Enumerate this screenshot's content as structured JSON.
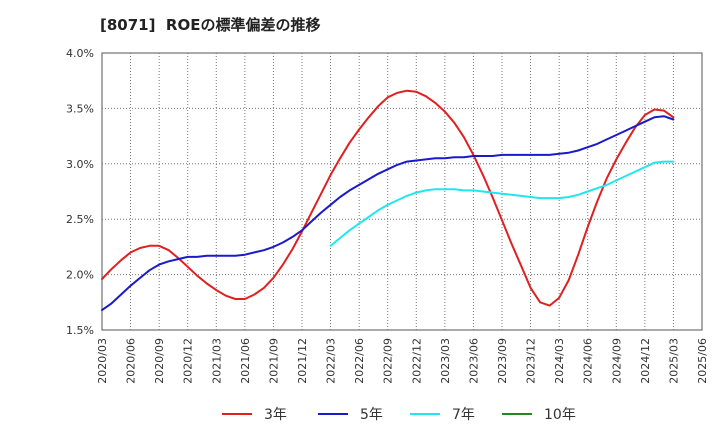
{
  "chart_data": {
    "type": "line",
    "title": "[8071]  ROEの標準偏差の推移",
    "xlabel": "",
    "ylabel": "",
    "ylim": [
      1.5,
      4.0
    ],
    "yticks": [
      "1.5%",
      "2.0%",
      "2.5%",
      "3.0%",
      "3.5%",
      "4.0%"
    ],
    "ytick_values": [
      1.5,
      2.0,
      2.5,
      3.0,
      3.5,
      4.0
    ],
    "xticks": [
      "2020/03",
      "2020/06",
      "2020/09",
      "2020/12",
      "2021/03",
      "2021/06",
      "2021/09",
      "2021/12",
      "2022/03",
      "2022/06",
      "2022/09",
      "2022/12",
      "2023/03",
      "2023/06",
      "2023/09",
      "2023/12",
      "2024/03",
      "2024/06",
      "2024/09",
      "2024/12",
      "2025/03",
      "2025/06"
    ],
    "grid": true,
    "legend_position": "bottom",
    "series": [
      {
        "name": "3年",
        "color": "#e02020",
        "x": [
          0,
          0.333,
          0.667,
          1,
          1.333,
          1.667,
          2,
          2.333,
          2.667,
          3,
          3.333,
          3.667,
          4,
          4.333,
          4.667,
          5,
          5.333,
          5.667,
          6,
          6.333,
          6.667,
          7,
          7.333,
          7.667,
          8,
          8.333,
          8.667,
          9,
          9.333,
          9.667,
          10,
          10.333,
          10.667,
          11,
          11.333,
          11.667,
          12,
          12.333,
          12.667,
          13,
          13.333,
          13.667,
          14,
          14.333,
          14.667,
          15,
          15.333,
          15.667,
          16,
          16.333,
          16.667,
          17,
          17.333,
          17.667,
          18,
          18.333,
          18.667,
          19,
          19.333,
          19.667,
          20
        ],
        "values": [
          1.96,
          2.05,
          2.13,
          2.2,
          2.24,
          2.26,
          2.26,
          2.22,
          2.15,
          2.07,
          1.99,
          1.92,
          1.86,
          1.81,
          1.78,
          1.78,
          1.82,
          1.88,
          1.97,
          2.09,
          2.23,
          2.39,
          2.56,
          2.73,
          2.9,
          3.05,
          3.19,
          3.31,
          3.42,
          3.52,
          3.6,
          3.64,
          3.66,
          3.65,
          3.61,
          3.55,
          3.47,
          3.37,
          3.24,
          3.08,
          2.9,
          2.7,
          2.49,
          2.28,
          2.08,
          1.88,
          1.75,
          1.72,
          1.79,
          1.95,
          2.18,
          2.43,
          2.66,
          2.87,
          3.04,
          3.19,
          3.33,
          3.44,
          3.49,
          3.48,
          3.42
        ]
      },
      {
        "name": "5年",
        "color": "#1a1acc",
        "x": [
          0,
          0.333,
          0.667,
          1,
          1.333,
          1.667,
          2,
          2.333,
          2.667,
          3,
          3.333,
          3.667,
          4,
          4.333,
          4.667,
          5,
          5.333,
          5.667,
          6,
          6.333,
          6.667,
          7,
          7.333,
          7.667,
          8,
          8.333,
          8.667,
          9,
          9.333,
          9.667,
          10,
          10.333,
          10.667,
          11,
          11.333,
          11.667,
          12,
          12.333,
          12.667,
          13,
          13.333,
          13.667,
          14,
          14.333,
          14.667,
          15,
          15.333,
          15.667,
          16,
          16.333,
          16.667,
          17,
          17.333,
          17.667,
          18,
          18.333,
          18.667,
          19,
          19.333,
          19.667,
          20
        ],
        "values": [
          1.68,
          1.74,
          1.82,
          1.9,
          1.97,
          2.04,
          2.09,
          2.12,
          2.14,
          2.16,
          2.16,
          2.17,
          2.17,
          2.17,
          2.17,
          2.18,
          2.2,
          2.22,
          2.25,
          2.29,
          2.34,
          2.4,
          2.48,
          2.56,
          2.63,
          2.7,
          2.76,
          2.81,
          2.86,
          2.91,
          2.95,
          2.99,
          3.02,
          3.03,
          3.04,
          3.05,
          3.05,
          3.06,
          3.06,
          3.07,
          3.07,
          3.07,
          3.08,
          3.08,
          3.08,
          3.08,
          3.08,
          3.08,
          3.09,
          3.1,
          3.12,
          3.15,
          3.18,
          3.22,
          3.26,
          3.3,
          3.34,
          3.38,
          3.42,
          3.43,
          3.4
        ]
      },
      {
        "name": "7年",
        "color": "#22e6ee",
        "x": [
          8,
          8.333,
          8.667,
          9,
          9.333,
          9.667,
          10,
          10.333,
          10.667,
          11,
          11.333,
          11.667,
          12,
          12.333,
          12.667,
          13,
          13.333,
          13.667,
          14,
          14.333,
          14.667,
          15,
          15.333,
          15.667,
          16,
          16.333,
          16.667,
          17,
          17.333,
          17.667,
          18,
          18.333,
          18.667,
          19,
          19.333,
          19.667,
          20
        ],
        "values": [
          2.26,
          2.33,
          2.4,
          2.46,
          2.52,
          2.58,
          2.63,
          2.67,
          2.71,
          2.74,
          2.76,
          2.77,
          2.77,
          2.77,
          2.76,
          2.76,
          2.75,
          2.74,
          2.73,
          2.72,
          2.71,
          2.7,
          2.69,
          2.69,
          2.69,
          2.7,
          2.72,
          2.75,
          2.78,
          2.81,
          2.85,
          2.89,
          2.93,
          2.97,
          3.01,
          3.02,
          3.02
        ]
      },
      {
        "name": "10年",
        "color": "#228822",
        "x": [],
        "values": []
      }
    ]
  }
}
